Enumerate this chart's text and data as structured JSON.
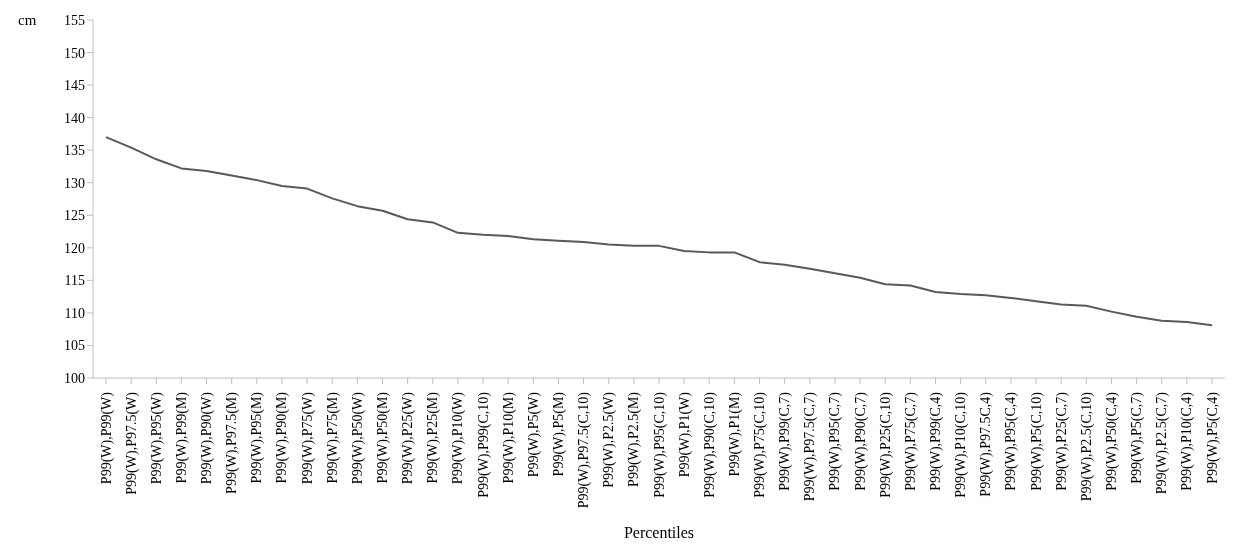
{
  "chart_data": {
    "type": "line",
    "xlabel": "Percentiles",
    "ylabel": "cm",
    "categories": [
      "P99(W),P99(W)",
      "P99(W),P97.5(W)",
      "P99(W),P95(W)",
      "P99(W),P99(M)",
      "P99(W),P90(W)",
      "P99(W),P97.5(M)",
      "P99(W),P95(M)",
      "P99(W),P90(M)",
      "P99(W),P75(W)",
      "P99(W),P75(M)",
      "P99(W),P50(W)",
      "P99(W),P50(M)",
      "P99(W),P25(W)",
      "P99(W),P25(M)",
      "P99(W),P10(W)",
      "P99(W),P99(C,10)",
      "P99(W),P10(M)",
      "P99(W),P5(W)",
      "P99(W),P5(M)",
      "P99(W),P97.5(C,10)",
      "P99(W),P2.5(W)",
      "P99(W),P2.5(M)",
      "P99(W),P95(C,10)",
      "P99(W),P1(W)",
      "P99(W),P90(C,10)",
      "P99(W),P1(M)",
      "P99(W),P75(C,10)",
      "P99(W),P99(C,7)",
      "P99(W),P97.5(C,7)",
      "P99(W),P95(C,7)",
      "P99(W),P90(C,7)",
      "P99(W),P25(C,10)",
      "P99(W),P75(C,7)",
      "P99(W),P99(C,4)",
      "P99(W),P10(C,10)",
      "P99(W),P97.5C,4)",
      "P99(W),P95(C,4)",
      "P99(W),P5(C,10)",
      "P99(W),P25(C,7)",
      "P99(W),P2.5(C,10)",
      "P99(W),P50(C,4)",
      "P99(W),P5(C,7)",
      "P99(W),P2.5(C,7)",
      "P99(W),P10(C,4)",
      "P99(W),P5(C,4)"
    ],
    "series": [
      {
        "color": "#595959",
        "values": [
          137,
          135.4,
          133.6,
          132.2,
          131.8,
          131.1,
          130.4,
          129.5,
          129.1,
          127.6,
          126.4,
          125.7,
          124.4,
          123.9,
          122.3,
          122.0,
          121.8,
          121.3,
          121.1,
          120.9,
          120.5,
          120.3,
          120.3,
          119.5,
          119.3,
          119.3,
          117.8,
          117.4,
          116.8,
          116.1,
          115.4,
          114.4,
          114.2,
          113.2,
          112.9,
          112.7,
          112.3,
          111.8,
          111.3,
          111.1,
          110.2,
          109.4,
          108.8,
          108.6,
          108.1
        ]
      }
    ],
    "ylim": [
      100,
      155
    ],
    "yticks": [
      100,
      105,
      110,
      115,
      120,
      125,
      130,
      135,
      140,
      145,
      150,
      155
    ],
    "grid": false,
    "marker": "none",
    "line_style": "solid"
  }
}
